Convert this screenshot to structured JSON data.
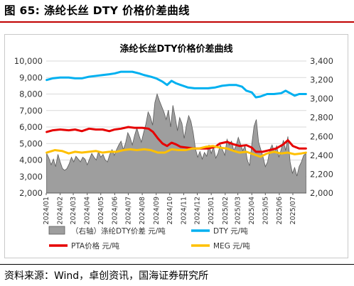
{
  "figure_title": "图 65:  涤纶长丝 DTY 价格价差曲线",
  "source_text": "资料来源：Wind，卓创资讯，国海证券研究所",
  "chart_data": {
    "type": "line",
    "title": "涤纶长丝DTY价格价差曲线",
    "x_type": "date",
    "x_ticks": [
      "2024/01",
      "2024/02",
      "2024/03",
      "2024/04",
      "2024/05",
      "2024/06",
      "2024/07",
      "2024/08",
      "2024/09",
      "2024/10",
      "2024/11",
      "2024/12",
      "2025/01",
      "2025/02",
      "2025/03",
      "2025/04",
      "2025/05",
      "2025/06",
      "2025/07"
    ],
    "y_left": {
      "range": [
        2000,
        10000
      ],
      "ticks": [
        2000,
        3000,
        4000,
        5000,
        6000,
        7000,
        8000,
        9000,
        10000
      ],
      "tick_labels": [
        "2,000",
        "3,000",
        "4,000",
        "5,000",
        "6,000",
        "7,000",
        "8,000",
        "9,000",
        "10,000"
      ]
    },
    "y_right": {
      "range": [
        2000,
        3400
      ],
      "ticks": [
        2000,
        2200,
        2400,
        2600,
        2800,
        3000,
        3200,
        3400
      ],
      "tick_labels": [
        "2,000",
        "2,200",
        "2,400",
        "2,600",
        "2,800",
        "3,000",
        "3,200",
        "3,400"
      ]
    },
    "gridlines": true,
    "legend_position": "bottom",
    "colors": {
      "spread": "#9e9e9e",
      "dty": "#00b0f0",
      "pta": "#e60000",
      "meg": "#ffc000"
    },
    "series": [
      {
        "name": "（右轴）涤纶DTY价差 元/吨",
        "axis": "right",
        "kind": "area",
        "points": [
          [
            "2024-01-02",
            2420
          ],
          [
            "2024-01-07",
            2370
          ],
          [
            "2024-01-12",
            2300
          ],
          [
            "2024-01-17",
            2360
          ],
          [
            "2024-01-22",
            2280
          ],
          [
            "2024-01-27",
            2410
          ],
          [
            "2024-02-01",
            2330
          ],
          [
            "2024-02-06",
            2260
          ],
          [
            "2024-02-11",
            2240
          ],
          [
            "2024-02-16",
            2260
          ],
          [
            "2024-02-21",
            2310
          ],
          [
            "2024-02-26",
            2380
          ],
          [
            "2024-03-02",
            2330
          ],
          [
            "2024-03-07",
            2390
          ],
          [
            "2024-03-12",
            2360
          ],
          [
            "2024-03-17",
            2330
          ],
          [
            "2024-03-22",
            2380
          ],
          [
            "2024-03-27",
            2360
          ],
          [
            "2024-04-01",
            2300
          ],
          [
            "2024-04-06",
            2360
          ],
          [
            "2024-04-11",
            2420
          ],
          [
            "2024-04-16",
            2380
          ],
          [
            "2024-04-21",
            2350
          ],
          [
            "2024-04-26",
            2440
          ],
          [
            "2024-05-01",
            2380
          ],
          [
            "2024-05-06",
            2410
          ],
          [
            "2024-05-11",
            2350
          ],
          [
            "2024-05-16",
            2330
          ],
          [
            "2024-05-21",
            2410
          ],
          [
            "2024-05-26",
            2460
          ],
          [
            "2024-05-31",
            2400
          ],
          [
            "2024-06-05",
            2460
          ],
          [
            "2024-06-10",
            2510
          ],
          [
            "2024-06-15",
            2550
          ],
          [
            "2024-06-20",
            2460
          ],
          [
            "2024-06-25",
            2530
          ],
          [
            "2024-06-30",
            2640
          ],
          [
            "2024-07-05",
            2590
          ],
          [
            "2024-07-10",
            2510
          ],
          [
            "2024-07-15",
            2610
          ],
          [
            "2024-07-20",
            2690
          ],
          [
            "2024-07-25",
            2610
          ],
          [
            "2024-07-30",
            2540
          ],
          [
            "2024-08-04",
            2640
          ],
          [
            "2024-08-09",
            2730
          ],
          [
            "2024-08-14",
            2860
          ],
          [
            "2024-08-19",
            2810
          ],
          [
            "2024-08-24",
            2720
          ],
          [
            "2024-08-29",
            2960
          ],
          [
            "2024-09-03",
            3050
          ],
          [
            "2024-09-08",
            2980
          ],
          [
            "2024-09-13",
            2920
          ],
          [
            "2024-09-18",
            2860
          ],
          [
            "2024-09-23",
            2780
          ],
          [
            "2024-09-28",
            2880
          ],
          [
            "2024-10-03",
            2700
          ],
          [
            "2024-10-08",
            2930
          ],
          [
            "2024-10-13",
            2810
          ],
          [
            "2024-10-18",
            2660
          ],
          [
            "2024-10-23",
            2800
          ],
          [
            "2024-10-28",
            2740
          ],
          [
            "2024-11-02",
            2580
          ],
          [
            "2024-11-07",
            2720
          ],
          [
            "2024-11-12",
            2820
          ],
          [
            "2024-11-17",
            2760
          ],
          [
            "2024-11-22",
            2640
          ],
          [
            "2024-11-27",
            2470
          ],
          [
            "2024-12-02",
            2380
          ],
          [
            "2024-12-07",
            2440
          ],
          [
            "2024-12-12",
            2360
          ],
          [
            "2024-12-17",
            2430
          ],
          [
            "2024-12-22",
            2390
          ],
          [
            "2024-12-27",
            2510
          ],
          [
            "2025-01-01",
            2420
          ],
          [
            "2025-01-06",
            2490
          ],
          [
            "2025-01-11",
            2370
          ],
          [
            "2025-01-16",
            2420
          ],
          [
            "2025-01-21",
            2510
          ],
          [
            "2025-01-26",
            2460
          ],
          [
            "2025-01-31",
            2400
          ],
          [
            "2025-02-05",
            2570
          ],
          [
            "2025-02-10",
            2510
          ],
          [
            "2025-02-15",
            2550
          ],
          [
            "2025-02-20",
            2450
          ],
          [
            "2025-02-25",
            2500
          ],
          [
            "2025-03-02",
            2590
          ],
          [
            "2025-03-07",
            2520
          ],
          [
            "2025-03-12",
            2450
          ],
          [
            "2025-03-17",
            2500
          ],
          [
            "2025-03-22",
            2350
          ],
          [
            "2025-03-27",
            2290
          ],
          [
            "2025-04-01",
            2520
          ],
          [
            "2025-04-06",
            2710
          ],
          [
            "2025-04-11",
            2780
          ],
          [
            "2025-04-16",
            2540
          ],
          [
            "2025-04-21",
            2460
          ],
          [
            "2025-04-26",
            2380
          ],
          [
            "2025-05-01",
            2280
          ],
          [
            "2025-05-06",
            2330
          ],
          [
            "2025-05-11",
            2460
          ],
          [
            "2025-05-16",
            2510
          ],
          [
            "2025-05-21",
            2430
          ],
          [
            "2025-05-26",
            2500
          ],
          [
            "2025-05-31",
            2380
          ],
          [
            "2025-06-05",
            2460
          ],
          [
            "2025-06-10",
            2560
          ],
          [
            "2025-06-15",
            2450
          ],
          [
            "2025-06-20",
            2600
          ],
          [
            "2025-06-25",
            2330
          ],
          [
            "2025-06-30",
            2210
          ],
          [
            "2025-07-05",
            2270
          ],
          [
            "2025-07-10",
            2180
          ],
          [
            "2025-07-15",
            2280
          ],
          [
            "2025-07-20",
            2330
          ],
          [
            "2025-07-25",
            2400
          ],
          [
            "2025-07-30",
            2420
          ]
        ]
      },
      {
        "name": "DTY 元/吨",
        "axis": "left",
        "kind": "line",
        "points": [
          [
            "2024-01-02",
            8850
          ],
          [
            "2024-01-15",
            8950
          ],
          [
            "2024-02-01",
            9000
          ],
          [
            "2024-02-20",
            9000
          ],
          [
            "2024-03-05",
            8950
          ],
          [
            "2024-03-20",
            8950
          ],
          [
            "2024-04-05",
            9050
          ],
          [
            "2024-04-20",
            9100
          ],
          [
            "2024-05-05",
            9150
          ],
          [
            "2024-05-20",
            9200
          ],
          [
            "2024-06-01",
            9250
          ],
          [
            "2024-06-15",
            9350
          ],
          [
            "2024-06-25",
            9350
          ],
          [
            "2024-07-10",
            9350
          ],
          [
            "2024-07-25",
            9250
          ],
          [
            "2024-08-05",
            9150
          ],
          [
            "2024-08-20",
            9050
          ],
          [
            "2024-09-01",
            8950
          ],
          [
            "2024-09-15",
            8750
          ],
          [
            "2024-09-25",
            8550
          ],
          [
            "2024-10-05",
            8800
          ],
          [
            "2024-10-15",
            8650
          ],
          [
            "2024-10-25",
            8550
          ],
          [
            "2024-11-10",
            8400
          ],
          [
            "2024-11-25",
            8350
          ],
          [
            "2024-12-10",
            8350
          ],
          [
            "2024-12-25",
            8350
          ],
          [
            "2025-01-10",
            8400
          ],
          [
            "2025-01-25",
            8500
          ],
          [
            "2025-02-10",
            8550
          ],
          [
            "2025-02-25",
            8550
          ],
          [
            "2025-03-10",
            8450
          ],
          [
            "2025-03-20",
            8200
          ],
          [
            "2025-04-01",
            8100
          ],
          [
            "2025-04-10",
            7800
          ],
          [
            "2025-04-20",
            7850
          ],
          [
            "2025-05-05",
            8000
          ],
          [
            "2025-05-20",
            8000
          ],
          [
            "2025-06-05",
            8050
          ],
          [
            "2025-06-15",
            8200
          ],
          [
            "2025-06-25",
            8050
          ],
          [
            "2025-07-05",
            7900
          ],
          [
            "2025-07-15",
            8000
          ],
          [
            "2025-07-25",
            8000
          ],
          [
            "2025-07-30",
            8000
          ]
        ]
      },
      {
        "name": "PTA价格 元/吨",
        "axis": "left",
        "kind": "line",
        "points": [
          [
            "2024-01-02",
            5700
          ],
          [
            "2024-01-15",
            5800
          ],
          [
            "2024-02-01",
            5850
          ],
          [
            "2024-02-20",
            5800
          ],
          [
            "2024-03-05",
            5850
          ],
          [
            "2024-03-20",
            5750
          ],
          [
            "2024-04-05",
            5900
          ],
          [
            "2024-04-20",
            5850
          ],
          [
            "2024-05-05",
            5850
          ],
          [
            "2024-05-20",
            5750
          ],
          [
            "2024-06-01",
            5850
          ],
          [
            "2024-06-15",
            5900
          ],
          [
            "2024-07-01",
            6000
          ],
          [
            "2024-07-15",
            5950
          ],
          [
            "2024-08-01",
            5950
          ],
          [
            "2024-08-15",
            5900
          ],
          [
            "2024-08-25",
            5700
          ],
          [
            "2024-09-05",
            5300
          ],
          [
            "2024-09-15",
            5000
          ],
          [
            "2024-09-25",
            4850
          ],
          [
            "2024-10-05",
            5050
          ],
          [
            "2024-10-15",
            4950
          ],
          [
            "2024-10-25",
            4800
          ],
          [
            "2024-11-10",
            4750
          ],
          [
            "2024-11-25",
            4700
          ],
          [
            "2024-12-10",
            4700
          ],
          [
            "2024-12-25",
            4700
          ],
          [
            "2025-01-10",
            4800
          ],
          [
            "2025-01-20",
            5000
          ],
          [
            "2025-02-05",
            5100
          ],
          [
            "2025-02-20",
            4950
          ],
          [
            "2025-03-05",
            4850
          ],
          [
            "2025-03-20",
            4900
          ],
          [
            "2025-04-01",
            4750
          ],
          [
            "2025-04-10",
            4500
          ],
          [
            "2025-04-25",
            4500
          ],
          [
            "2025-05-10",
            4600
          ],
          [
            "2025-05-25",
            4700
          ],
          [
            "2025-06-10",
            4950
          ],
          [
            "2025-06-20",
            5200
          ],
          [
            "2025-07-01",
            4850
          ],
          [
            "2025-07-15",
            4700
          ],
          [
            "2025-07-30",
            4700
          ]
        ]
      },
      {
        "name": "MEG 元/吨",
        "axis": "left",
        "kind": "line",
        "points": [
          [
            "2024-01-02",
            4450
          ],
          [
            "2024-01-20",
            4600
          ],
          [
            "2024-02-05",
            4550
          ],
          [
            "2024-02-20",
            4400
          ],
          [
            "2024-03-05",
            4500
          ],
          [
            "2024-03-20",
            4450
          ],
          [
            "2024-04-05",
            4500
          ],
          [
            "2024-04-20",
            4550
          ],
          [
            "2024-05-05",
            4450
          ],
          [
            "2024-05-20",
            4500
          ],
          [
            "2024-06-05",
            4500
          ],
          [
            "2024-06-20",
            4600
          ],
          [
            "2024-07-05",
            4650
          ],
          [
            "2024-07-20",
            4600
          ],
          [
            "2024-08-05",
            4650
          ],
          [
            "2024-08-20",
            4600
          ],
          [
            "2024-09-05",
            4450
          ],
          [
            "2024-09-20",
            4450
          ],
          [
            "2024-10-05",
            4650
          ],
          [
            "2024-10-20",
            4600
          ],
          [
            "2024-11-05",
            4600
          ],
          [
            "2024-11-20",
            4700
          ],
          [
            "2024-12-05",
            4700
          ],
          [
            "2024-12-20",
            4800
          ],
          [
            "2025-01-05",
            4850
          ],
          [
            "2025-01-20",
            4750
          ],
          [
            "2025-02-05",
            4700
          ],
          [
            "2025-02-20",
            4550
          ],
          [
            "2025-03-05",
            4450
          ],
          [
            "2025-03-20",
            4500
          ],
          [
            "2025-04-05",
            4350
          ],
          [
            "2025-04-20",
            4200
          ],
          [
            "2025-05-05",
            4400
          ],
          [
            "2025-05-20",
            4500
          ],
          [
            "2025-06-05",
            4400
          ],
          [
            "2025-06-20",
            4450
          ],
          [
            "2025-07-05",
            4350
          ],
          [
            "2025-07-20",
            4400
          ],
          [
            "2025-07-30",
            4450
          ]
        ]
      }
    ]
  }
}
